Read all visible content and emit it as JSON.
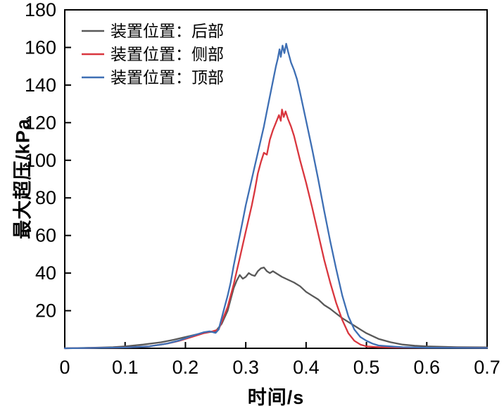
{
  "figure": {
    "xlabel": "时间/s",
    "ylabel": "最大超压/kPa"
  },
  "chart_data": {
    "type": "line",
    "title": "",
    "xlabel": "时间/s",
    "ylabel": "最大超压/kPa",
    "xlim": [
      0,
      0.7
    ],
    "ylim": [
      0,
      180
    ],
    "xticks": [
      0,
      0.1,
      0.2,
      0.3,
      0.4,
      0.5,
      0.6,
      0.7
    ],
    "yticks": [
      20,
      40,
      60,
      80,
      100,
      120,
      140,
      160,
      180
    ],
    "grid": false,
    "legend_position": "top-left",
    "axis_color": "#000000",
    "series": [
      {
        "name": "装置位置：后部",
        "color": "#595959",
        "points": [
          [
            0,
            0
          ],
          [
            0.05,
            0.3
          ],
          [
            0.08,
            0.6
          ],
          [
            0.1,
            1
          ],
          [
            0.13,
            2
          ],
          [
            0.16,
            3.2
          ],
          [
            0.18,
            4.5
          ],
          [
            0.2,
            6
          ],
          [
            0.22,
            7.5
          ],
          [
            0.24,
            8.6
          ],
          [
            0.25,
            9
          ],
          [
            0.26,
            13
          ],
          [
            0.27,
            20
          ],
          [
            0.275,
            26
          ],
          [
            0.28,
            32
          ],
          [
            0.285,
            36
          ],
          [
            0.29,
            39
          ],
          [
            0.295,
            37
          ],
          [
            0.3,
            38
          ],
          [
            0.305,
            40
          ],
          [
            0.31,
            39
          ],
          [
            0.315,
            38.5
          ],
          [
            0.32,
            41
          ],
          [
            0.325,
            42.5
          ],
          [
            0.33,
            43
          ],
          [
            0.335,
            41
          ],
          [
            0.34,
            40
          ],
          [
            0.345,
            41
          ],
          [
            0.35,
            40
          ],
          [
            0.36,
            38
          ],
          [
            0.37,
            36.5
          ],
          [
            0.38,
            35
          ],
          [
            0.39,
            33
          ],
          [
            0.4,
            30
          ],
          [
            0.41,
            28
          ],
          [
            0.42,
            26
          ],
          [
            0.43,
            23
          ],
          [
            0.44,
            21
          ],
          [
            0.45,
            18.5
          ],
          [
            0.46,
            16
          ],
          [
            0.47,
            14
          ],
          [
            0.48,
            12
          ],
          [
            0.49,
            10
          ],
          [
            0.5,
            8
          ],
          [
            0.52,
            5
          ],
          [
            0.54,
            3.2
          ],
          [
            0.56,
            2
          ],
          [
            0.58,
            1.4
          ],
          [
            0.6,
            1
          ],
          [
            0.65,
            0.6
          ],
          [
            0.7,
            0.5
          ]
        ]
      },
      {
        "name": "装置位置：侧部",
        "color": "#d9363e",
        "points": [
          [
            0,
            0
          ],
          [
            0.1,
            0.4
          ],
          [
            0.14,
            1
          ],
          [
            0.17,
            2.5
          ],
          [
            0.19,
            4
          ],
          [
            0.21,
            6
          ],
          [
            0.23,
            8
          ],
          [
            0.245,
            9
          ],
          [
            0.255,
            10
          ],
          [
            0.26,
            14
          ],
          [
            0.27,
            22
          ],
          [
            0.28,
            34
          ],
          [
            0.29,
            48
          ],
          [
            0.3,
            62
          ],
          [
            0.31,
            76
          ],
          [
            0.315,
            84
          ],
          [
            0.32,
            93
          ],
          [
            0.325,
            99
          ],
          [
            0.33,
            104
          ],
          [
            0.335,
            103
          ],
          [
            0.34,
            111
          ],
          [
            0.345,
            116
          ],
          [
            0.35,
            120
          ],
          [
            0.355,
            124
          ],
          [
            0.358,
            121
          ],
          [
            0.36,
            127
          ],
          [
            0.363,
            123
          ],
          [
            0.366,
            126
          ],
          [
            0.37,
            122
          ],
          [
            0.375,
            118
          ],
          [
            0.38,
            113
          ],
          [
            0.39,
            100
          ],
          [
            0.4,
            88
          ],
          [
            0.41,
            75
          ],
          [
            0.42,
            61
          ],
          [
            0.43,
            47
          ],
          [
            0.44,
            35
          ],
          [
            0.45,
            24
          ],
          [
            0.46,
            15
          ],
          [
            0.47,
            8
          ],
          [
            0.48,
            4
          ],
          [
            0.49,
            2
          ],
          [
            0.5,
            1
          ],
          [
            0.52,
            0.6
          ],
          [
            0.55,
            0.4
          ],
          [
            0.6,
            0.3
          ],
          [
            0.7,
            0.2
          ]
        ]
      },
      {
        "name": "装置位置：顶部",
        "color": "#3e6fb4",
        "points": [
          [
            0,
            0
          ],
          [
            0.1,
            0.4
          ],
          [
            0.14,
            1
          ],
          [
            0.17,
            2.5
          ],
          [
            0.19,
            4.2
          ],
          [
            0.21,
            6.5
          ],
          [
            0.23,
            8.5
          ],
          [
            0.24,
            9
          ],
          [
            0.25,
            8.2
          ],
          [
            0.255,
            10
          ],
          [
            0.26,
            16
          ],
          [
            0.265,
            22
          ],
          [
            0.27,
            28
          ],
          [
            0.275,
            35
          ],
          [
            0.28,
            44
          ],
          [
            0.285,
            52
          ],
          [
            0.29,
            60
          ],
          [
            0.295,
            68
          ],
          [
            0.3,
            76
          ],
          [
            0.305,
            83
          ],
          [
            0.31,
            90
          ],
          [
            0.315,
            97
          ],
          [
            0.32,
            104
          ],
          [
            0.325,
            111
          ],
          [
            0.33,
            118
          ],
          [
            0.335,
            126
          ],
          [
            0.34,
            134
          ],
          [
            0.345,
            142
          ],
          [
            0.35,
            150
          ],
          [
            0.353,
            154
          ],
          [
            0.356,
            159
          ],
          [
            0.358,
            155
          ],
          [
            0.361,
            161
          ],
          [
            0.364,
            157
          ],
          [
            0.367,
            162
          ],
          [
            0.37,
            158
          ],
          [
            0.375,
            152
          ],
          [
            0.38,
            148
          ],
          [
            0.385,
            143
          ],
          [
            0.39,
            136
          ],
          [
            0.4,
            121
          ],
          [
            0.41,
            106
          ],
          [
            0.42,
            90
          ],
          [
            0.43,
            73
          ],
          [
            0.44,
            57
          ],
          [
            0.45,
            42
          ],
          [
            0.46,
            28
          ],
          [
            0.47,
            17
          ],
          [
            0.48,
            10
          ],
          [
            0.49,
            6
          ],
          [
            0.5,
            4
          ],
          [
            0.51,
            2.5
          ],
          [
            0.52,
            1.5
          ],
          [
            0.54,
            1
          ],
          [
            0.56,
            0.6
          ],
          [
            0.6,
            0.3
          ],
          [
            0.7,
            0.2
          ]
        ]
      }
    ]
  }
}
